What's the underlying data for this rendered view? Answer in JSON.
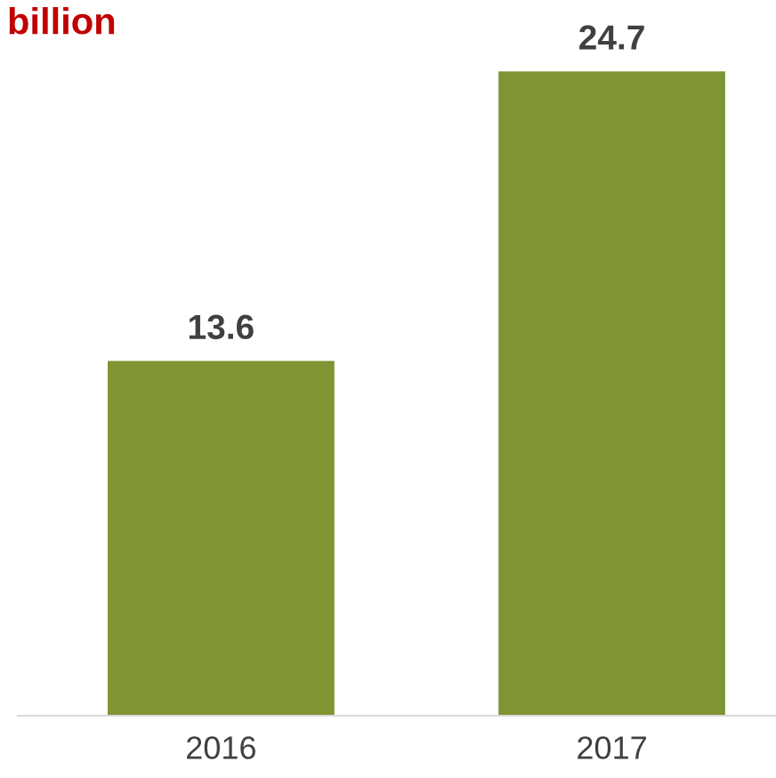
{
  "chart_data": {
    "type": "bar",
    "title": "billion",
    "categories": [
      "2016",
      "2017"
    ],
    "values": [
      13.6,
      24.7
    ],
    "color": "#7f9433",
    "data_labels": true,
    "grid": false,
    "legend": false
  }
}
